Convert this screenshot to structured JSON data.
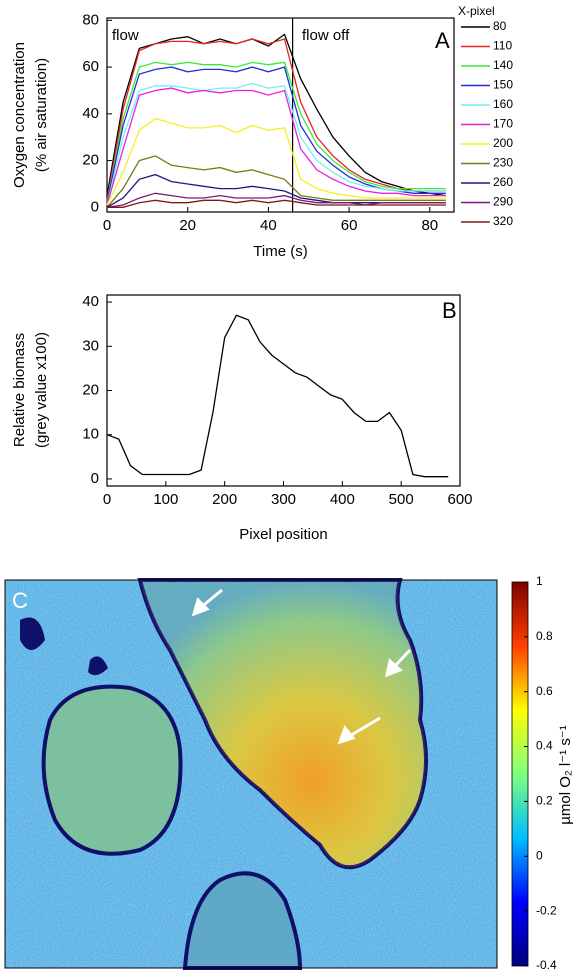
{
  "chart_data": [
    {
      "type": "line",
      "panel_label": "A",
      "annotations": [
        "flow",
        "flow off"
      ],
      "x_label": "Time (s)",
      "y_label": [
        "Oxygen concentration",
        "(% air saturation)"
      ],
      "legend_title": "X-pixel",
      "legend": "outside-right",
      "vline": 46,
      "xlim": [
        0,
        86
      ],
      "ylim": [
        -2,
        81
      ],
      "xticks": [
        0,
        20,
        40,
        60,
        80
      ],
      "yticks": [
        0,
        20,
        40,
        60,
        80
      ],
      "x": [
        0,
        4,
        8,
        12,
        16,
        20,
        24,
        28,
        32,
        36,
        40,
        44,
        48,
        52,
        56,
        60,
        64,
        68,
        72,
        76,
        80,
        84
      ],
      "series": [
        {
          "name": "80",
          "color": "#000000",
          "values": [
            5,
            45,
            68,
            70,
            72,
            73,
            70,
            72,
            70,
            72,
            69,
            74,
            55,
            42,
            30,
            22,
            15,
            11,
            9,
            7,
            6,
            5
          ]
        },
        {
          "name": "110",
          "color": "#e8231e",
          "values": [
            3,
            42,
            67,
            70,
            71,
            71,
            70,
            71,
            70,
            72,
            70,
            72,
            45,
            30,
            22,
            16,
            12,
            10,
            8,
            7,
            7,
            7
          ]
        },
        {
          "name": "140",
          "color": "#3ee83a",
          "values": [
            2,
            38,
            60,
            62,
            61,
            62,
            61,
            61,
            60,
            62,
            61,
            62,
            40,
            27,
            20,
            15,
            11,
            9,
            8,
            8,
            8,
            8
          ]
        },
        {
          "name": "150",
          "color": "#2430d8",
          "values": [
            2,
            35,
            57,
            59,
            60,
            58,
            59,
            59,
            58,
            60,
            58,
            60,
            35,
            24,
            18,
            13,
            10,
            8,
            7,
            6,
            6,
            6
          ]
        },
        {
          "name": "160",
          "color": "#6ef0f0",
          "values": [
            1,
            30,
            50,
            52,
            52,
            51,
            50,
            51,
            51,
            53,
            51,
            52,
            30,
            20,
            15,
            11,
            9,
            8,
            7,
            7,
            7,
            7
          ]
        },
        {
          "name": "170",
          "color": "#e820e0",
          "values": [
            1,
            25,
            48,
            50,
            51,
            49,
            50,
            49,
            50,
            50,
            48,
            50,
            25,
            16,
            12,
            9,
            7,
            6,
            6,
            5,
            5,
            5
          ]
        },
        {
          "name": "200",
          "color": "#f4f020",
          "values": [
            1,
            15,
            33,
            38,
            36,
            34,
            34,
            35,
            32,
            35,
            33,
            34,
            12,
            8,
            6,
            5,
            4,
            4,
            4,
            4,
            4,
            4
          ]
        },
        {
          "name": "230",
          "color": "#7a7a10",
          "values": [
            0,
            8,
            20,
            22,
            18,
            17,
            16,
            17,
            15,
            16,
            14,
            12,
            5,
            4,
            3,
            3,
            3,
            3,
            3,
            3,
            3,
            3
          ]
        },
        {
          "name": "260",
          "color": "#1a1a80",
          "values": [
            0,
            4,
            12,
            14,
            11,
            10,
            9,
            8,
            8,
            9,
            8,
            7,
            4,
            3,
            2,
            2,
            2,
            2,
            2,
            2,
            2,
            2
          ]
        },
        {
          "name": "290",
          "color": "#7a1a7a",
          "values": [
            0,
            1,
            4,
            6,
            5,
            4,
            4,
            5,
            4,
            4,
            4,
            5,
            3,
            2,
            2,
            2,
            1,
            2,
            2,
            2,
            2,
            2
          ]
        },
        {
          "name": "320",
          "color": "#801818",
          "values": [
            0,
            0,
            2,
            3,
            2,
            2,
            3,
            3,
            2,
            3,
            2,
            3,
            2,
            1,
            1,
            1,
            1,
            1,
            1,
            1,
            1,
            1
          ]
        }
      ]
    },
    {
      "type": "line",
      "panel_label": "B",
      "x_label": "Pixel position",
      "y_label": [
        "Relative biomass",
        "(grey value x100)"
      ],
      "xlim": [
        0,
        600
      ],
      "ylim": [
        -1.6,
        41.6
      ],
      "xticks": [
        0,
        100,
        200,
        300,
        400,
        500,
        600
      ],
      "yticks": [
        0,
        10,
        20,
        30,
        40
      ],
      "x": [
        0,
        20,
        40,
        60,
        80,
        100,
        120,
        140,
        160,
        180,
        200,
        220,
        240,
        260,
        280,
        300,
        320,
        340,
        360,
        380,
        400,
        420,
        440,
        460,
        480,
        500,
        520,
        540,
        560,
        580
      ],
      "series": [
        {
          "color": "#000000",
          "values": [
            10,
            9,
            3,
            1,
            1,
            1,
            1,
            1,
            2,
            15,
            32,
            37,
            36,
            31,
            28,
            26,
            24,
            23,
            21,
            19,
            18,
            15,
            13,
            13,
            15,
            11,
            1,
            0.5,
            0.5,
            0.5
          ]
        }
      ]
    },
    {
      "type": "heatmap",
      "panel_label": "C",
      "colorbar": {
        "label": "µmol O₂ l⁻¹ s⁻¹",
        "lim": [
          -0.4,
          1
        ],
        "ticks": [
          1,
          0.8,
          0.6,
          0.4,
          0.2,
          0,
          -0.2,
          -0.4
        ],
        "colormap": [
          "#00007f",
          "#0000ff",
          "#00bfff",
          "#7fff7f",
          "#ffff00",
          "#ff4000",
          "#7f0000"
        ]
      }
    }
  ]
}
